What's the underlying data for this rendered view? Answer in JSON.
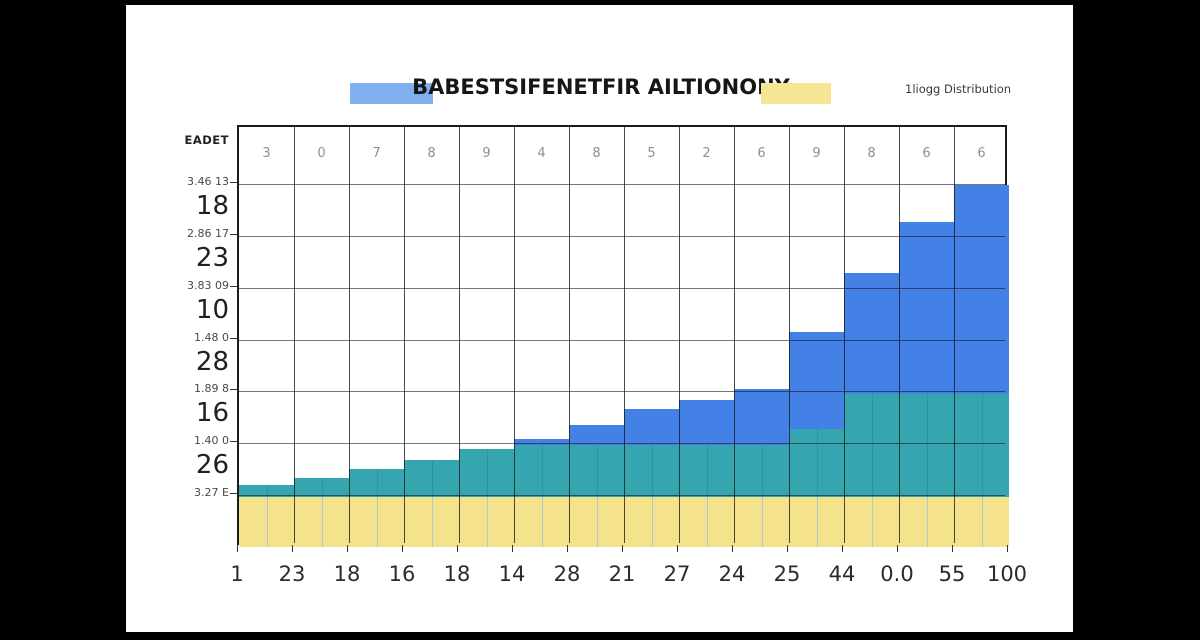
{
  "window": {
    "bg": "#000000",
    "card_bg": "#ffffff"
  },
  "legend": {
    "title": "BABESTSIFENETFIR AILTIONONY",
    "right_label": "1liogg Distribution",
    "swatch_blue_color": "#7fb0f0",
    "swatch_yellow_color": "#f6e592"
  },
  "y_axis": {
    "corner_label": "EADET",
    "minor_labels": [
      "3.46 13",
      "2.86 17",
      "3.83 09",
      "1.48 0",
      "1.89 8",
      "1.40 0",
      "3.27 E"
    ],
    "major_labels": [
      "18",
      "23",
      "10",
      "28",
      "16",
      "26"
    ]
  },
  "x_axis": {
    "edge_labels": [
      "1",
      "23",
      "18",
      "16",
      "18",
      "14",
      "28",
      "21",
      "27",
      "24",
      "25",
      "44",
      "0.0",
      "55",
      "100"
    ]
  },
  "chart_data": {
    "type": "bar",
    "stacked": true,
    "title": "BABESTSIFENETFIR AILTIONONY",
    "legend_entries": [
      "BABESTSIFENETFIR AILTIONONY",
      "1liogg Distribution"
    ],
    "column_header_digits": [
      "3",
      "0",
      "7",
      "8",
      "9",
      "4",
      "8",
      "5",
      "2",
      "6",
      "9",
      "8",
      "6",
      "6"
    ],
    "x_edge_labels": [
      "1",
      "23",
      "18",
      "16",
      "18",
      "14",
      "28",
      "21",
      "27",
      "24",
      "25",
      "44",
      "0.0",
      "55",
      "100"
    ],
    "value_unit": "grid rows (1 unit = one horizontal gridline spacing)",
    "ylim": [
      0,
      7
    ],
    "grid": true,
    "series": [
      {
        "name": "yellow-band",
        "color": "#f5e38c",
        "values": [
          0.96,
          0.96,
          0.96,
          0.96,
          0.96,
          0.96,
          0.96,
          0.96,
          0.96,
          0.96,
          0.96,
          0.96,
          0.96,
          0.96
        ]
      },
      {
        "name": "teal-band",
        "color": "#35a5b0",
        "values": [
          0.24,
          0.37,
          0.54,
          0.72,
          0.93,
          1.01,
          1.01,
          1.01,
          1.01,
          1.01,
          1.32,
          1.99,
          1.99,
          1.99
        ]
      },
      {
        "name": "blue-bars",
        "color": "#4381e6",
        "values": [
          0,
          0,
          0,
          0,
          0,
          0.11,
          0.38,
          0.69,
          0.86,
          1.08,
          1.87,
          2.33,
          3.32,
          4.03
        ]
      }
    ]
  },
  "colors": {
    "grid_line": "#1a1a1a",
    "mid_line_yellow_zone": "#b7c4d8",
    "mid_line_teal_zone": "rgba(0,0,0,0.10)",
    "major_label_text": "#1f1f1f",
    "minor_label_text": "#4a4a4a",
    "header_digit_text": "#8f8f8f",
    "x_label_text": "#2b2b2b"
  }
}
